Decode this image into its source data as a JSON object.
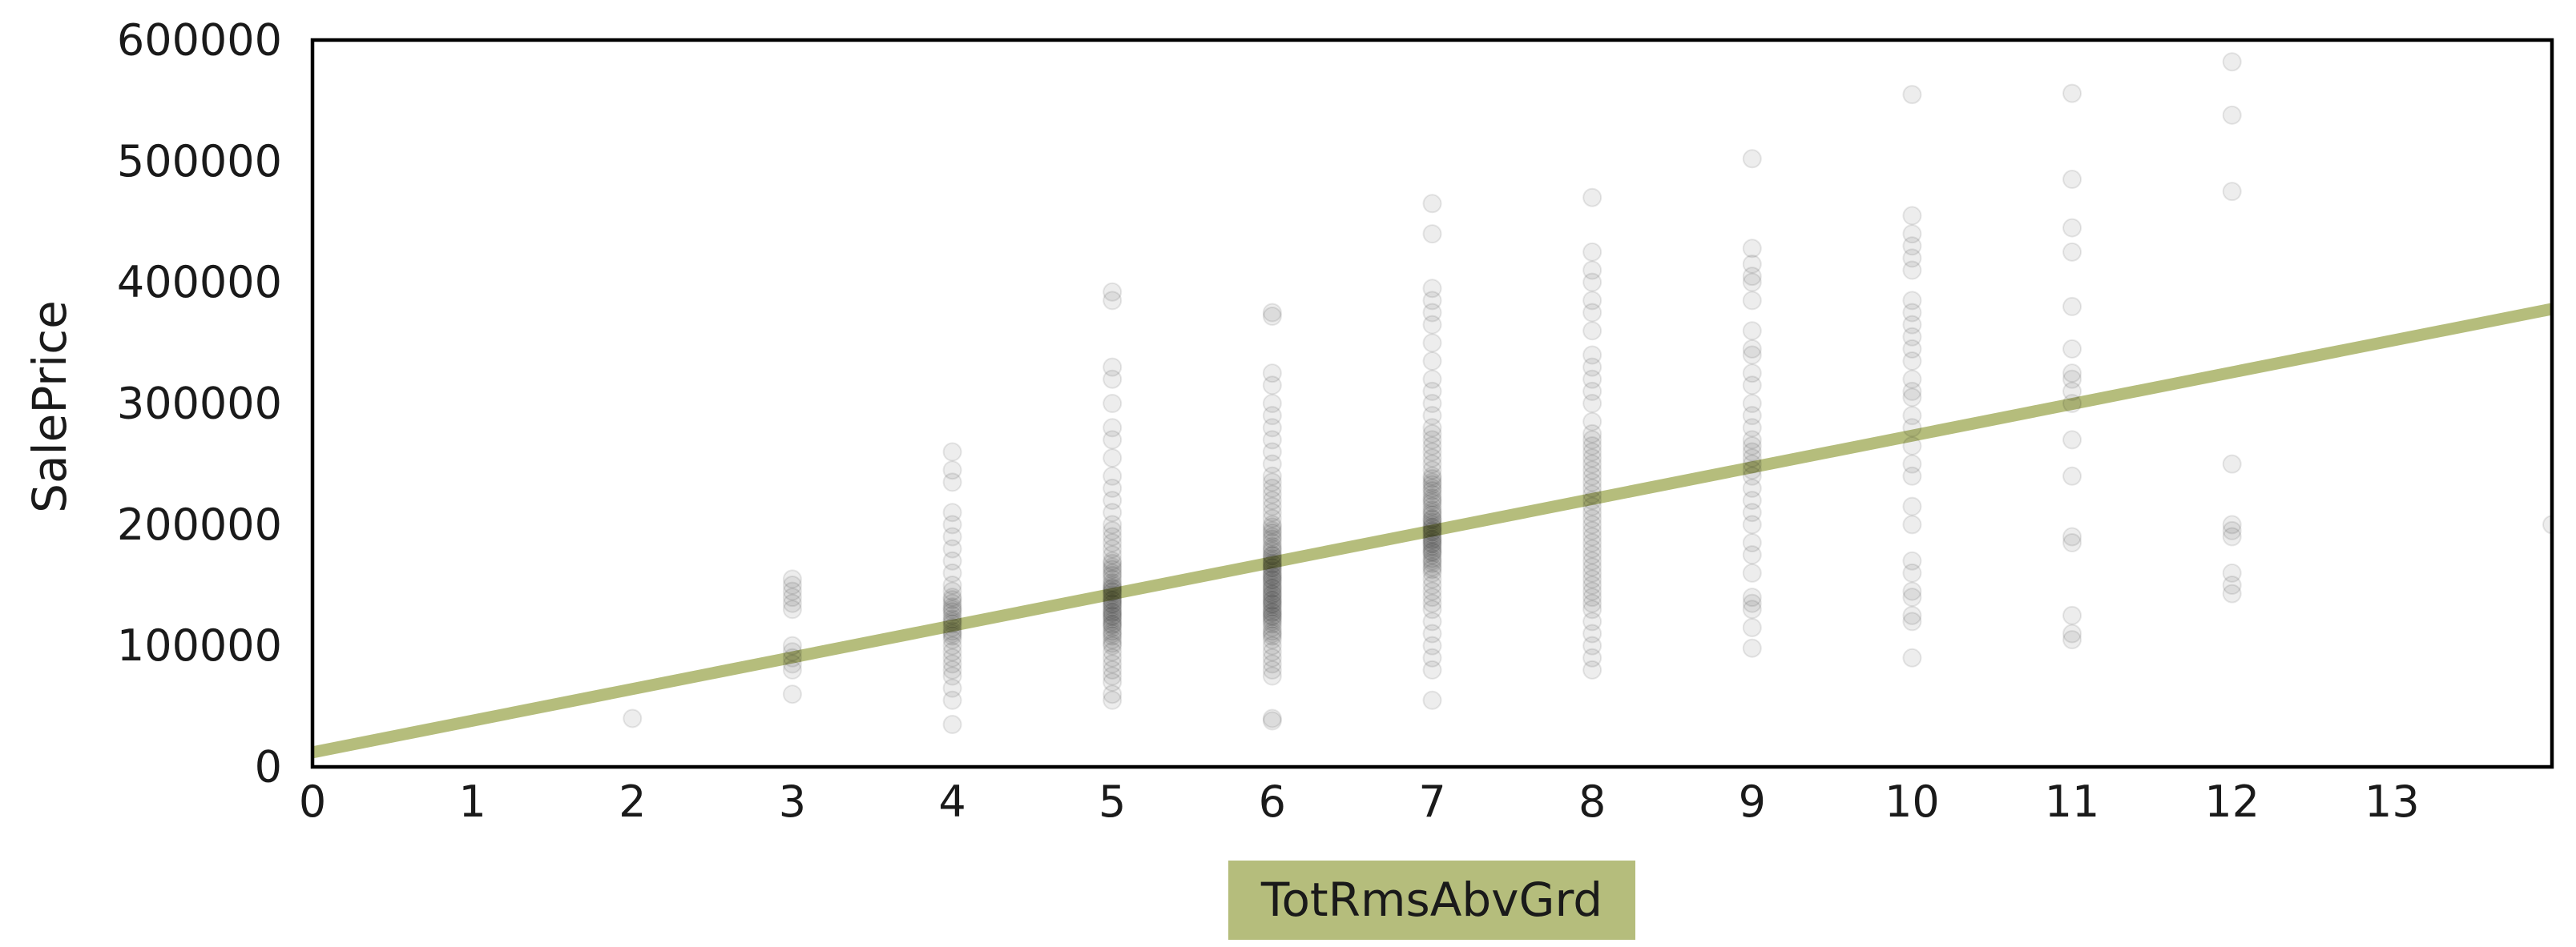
{
  "chart_data": {
    "type": "scatter",
    "xlabel": "TotRmsAbvGrd",
    "ylabel": "SalePrice",
    "xlim": [
      0,
      14
    ],
    "ylim": [
      0,
      600000
    ],
    "xticks": [
      0,
      1,
      2,
      3,
      4,
      5,
      6,
      7,
      8,
      9,
      10,
      11,
      12,
      13
    ],
    "yticks": [
      0,
      100000,
      200000,
      300000,
      400000,
      500000,
      600000
    ],
    "grid": false,
    "colors": {
      "points": "#000000",
      "regression_line": "#b5bd7c",
      "xlabel_box": "#b5bd7c",
      "axes": "#000000"
    },
    "regression_line": {
      "x": [
        0,
        14
      ],
      "y": [
        12000,
        378000
      ]
    },
    "series": [
      {
        "x": 2,
        "values": [
          40000
        ]
      },
      {
        "x": 3,
        "values": [
          60000,
          80000,
          85000,
          90000,
          95000,
          100000,
          130000,
          135000,
          140000,
          145000,
          150000,
          155000
        ]
      },
      {
        "x": 4,
        "values": [
          35000,
          55000,
          65000,
          75000,
          80000,
          85000,
          90000,
          95000,
          100000,
          105000,
          108000,
          110000,
          112000,
          115000,
          118000,
          120000,
          122000,
          125000,
          128000,
          130000,
          132000,
          135000,
          138000,
          140000,
          145000,
          150000,
          160000,
          170000,
          180000,
          190000,
          200000,
          210000,
          235000,
          245000,
          260000
        ]
      },
      {
        "x": 5,
        "values": [
          55000,
          60000,
          70000,
          75000,
          80000,
          85000,
          90000,
          95000,
          100000,
          102000,
          105000,
          108000,
          110000,
          112000,
          115000,
          117000,
          118000,
          120000,
          122000,
          124000,
          125000,
          127000,
          128000,
          130000,
          132000,
          134000,
          135000,
          137000,
          138000,
          140000,
          142000,
          144000,
          145000,
          147000,
          148000,
          150000,
          152000,
          155000,
          158000,
          160000,
          163000,
          165000,
          168000,
          170000,
          175000,
          180000,
          185000,
          190000,
          195000,
          200000,
          210000,
          220000,
          230000,
          240000,
          255000,
          270000,
          280000,
          300000,
          320000,
          330000,
          385000,
          392000
        ]
      },
      {
        "x": 6,
        "values": [
          38000,
          40000,
          75000,
          80000,
          85000,
          90000,
          95000,
          100000,
          105000,
          108000,
          110000,
          112000,
          115000,
          118000,
          120000,
          122000,
          124000,
          125000,
          127000,
          128000,
          130000,
          132000,
          134000,
          135000,
          137000,
          138000,
          140000,
          142000,
          143000,
          145000,
          147000,
          148000,
          150000,
          152000,
          154000,
          155000,
          157000,
          158000,
          160000,
          162000,
          164000,
          165000,
          167000,
          168000,
          170000,
          172000,
          174000,
          175000,
          178000,
          180000,
          182000,
          185000,
          188000,
          190000,
          193000,
          195000,
          198000,
          200000,
          205000,
          210000,
          215000,
          220000,
          225000,
          230000,
          235000,
          240000,
          250000,
          260000,
          270000,
          280000,
          290000,
          300000,
          315000,
          325000,
          372000,
          375000
        ]
      },
      {
        "x": 7,
        "values": [
          55000,
          80000,
          90000,
          100000,
          110000,
          120000,
          130000,
          135000,
          140000,
          145000,
          150000,
          155000,
          160000,
          163000,
          165000,
          168000,
          170000,
          172000,
          175000,
          177000,
          178000,
          180000,
          182000,
          184000,
          185000,
          187000,
          188000,
          190000,
          192000,
          194000,
          195000,
          197000,
          198000,
          200000,
          202000,
          204000,
          205000,
          208000,
          210000,
          212000,
          215000,
          218000,
          220000,
          222000,
          225000,
          228000,
          230000,
          233000,
          235000,
          238000,
          240000,
          245000,
          250000,
          255000,
          260000,
          265000,
          270000,
          275000,
          280000,
          290000,
          300000,
          310000,
          320000,
          335000,
          350000,
          365000,
          375000,
          385000,
          395000,
          440000,
          465000
        ]
      },
      {
        "x": 8,
        "values": [
          80000,
          90000,
          100000,
          110000,
          120000,
          130000,
          135000,
          140000,
          145000,
          150000,
          155000,
          160000,
          165000,
          170000,
          175000,
          180000,
          185000,
          190000,
          195000,
          200000,
          205000,
          210000,
          215000,
          220000,
          225000,
          230000,
          235000,
          240000,
          245000,
          250000,
          255000,
          260000,
          265000,
          270000,
          275000,
          285000,
          300000,
          310000,
          320000,
          330000,
          340000,
          360000,
          375000,
          385000,
          400000,
          410000,
          425000,
          470000
        ]
      },
      {
        "x": 9,
        "values": [
          98000,
          115000,
          130000,
          135000,
          140000,
          160000,
          175000,
          185000,
          200000,
          210000,
          220000,
          230000,
          240000,
          245000,
          250000,
          255000,
          260000,
          265000,
          270000,
          280000,
          290000,
          300000,
          315000,
          325000,
          340000,
          345000,
          360000,
          385000,
          400000,
          405000,
          415000,
          428000,
          502000
        ]
      },
      {
        "x": 10,
        "values": [
          90000,
          120000,
          125000,
          140000,
          145000,
          160000,
          170000,
          200000,
          215000,
          240000,
          250000,
          265000,
          280000,
          290000,
          305000,
          310000,
          320000,
          335000,
          345000,
          355000,
          365000,
          375000,
          385000,
          410000,
          420000,
          430000,
          440000,
          455000,
          555000
        ]
      },
      {
        "x": 11,
        "values": [
          105000,
          110000,
          125000,
          185000,
          190000,
          240000,
          270000,
          300000,
          310000,
          320000,
          325000,
          345000,
          380000,
          425000,
          445000,
          485000,
          556000
        ]
      },
      {
        "x": 12,
        "values": [
          143000,
          150000,
          160000,
          190000,
          195000,
          200000,
          250000,
          475000,
          538000,
          582000
        ]
      },
      {
        "x": 14,
        "values": [
          200000
        ]
      }
    ]
  }
}
